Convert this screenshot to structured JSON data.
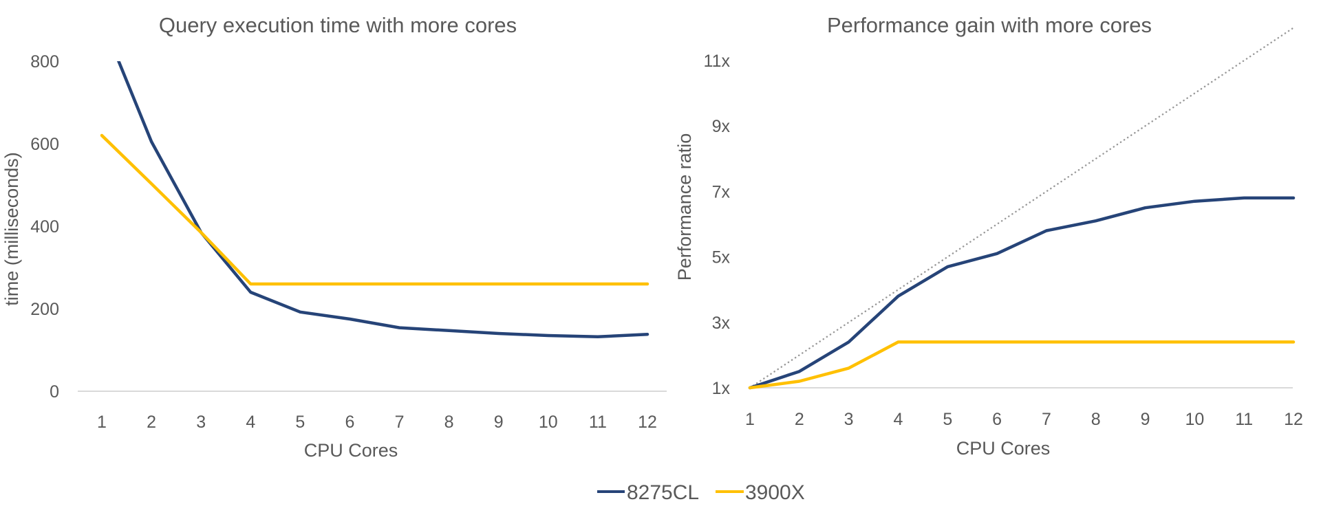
{
  "legend": {
    "position": "bottom-center",
    "items": [
      {
        "name": "8275CL",
        "color": "#264478"
      },
      {
        "name": "3900X",
        "color": "#FFC000"
      }
    ]
  },
  "chart_data": [
    {
      "type": "line",
      "title": "Query execution time with more cores",
      "xlabel": "CPU Cores",
      "ylabel": "time (milliseconds)",
      "x": [
        1,
        2,
        3,
        4,
        5,
        6,
        7,
        8,
        9,
        10,
        11,
        12
      ],
      "x_tick_labels": [
        "1",
        "2",
        "3",
        "4",
        "5",
        "6",
        "7",
        "8",
        "9",
        "10",
        "11",
        "12"
      ],
      "ylim": [
        0,
        800
      ],
      "y_ticks": [
        0,
        200,
        400,
        600,
        800
      ],
      "y_tick_labels": [
        "0",
        "200",
        "400",
        "600",
        "800"
      ],
      "grid": false,
      "series": [
        {
          "name": "8275CL",
          "color": "#264478",
          "values": [
            900,
            605,
            385,
            240,
            192,
            175,
            154,
            147,
            140,
            135,
            132,
            138
          ]
        },
        {
          "name": "3900X",
          "color": "#FFC000",
          "values": [
            620,
            503,
            385,
            260,
            260,
            260,
            260,
            260,
            260,
            260,
            260,
            260
          ]
        }
      ]
    },
    {
      "type": "line",
      "title": "Performance gain with more cores",
      "xlabel": "CPU Cores",
      "ylabel": "Performance ratio",
      "x": [
        1,
        2,
        3,
        4,
        5,
        6,
        7,
        8,
        9,
        10,
        11,
        12
      ],
      "x_tick_labels": [
        "1",
        "2",
        "3",
        "4",
        "5",
        "6",
        "7",
        "8",
        "9",
        "10",
        "11",
        "12"
      ],
      "ylim": [
        1,
        12
      ],
      "y_ticks": [
        1,
        3,
        5,
        7,
        9,
        11
      ],
      "y_tick_labels": [
        "1x",
        "3x",
        "5x",
        "7x",
        "9x",
        "11x"
      ],
      "grid": false,
      "series": [
        {
          "name": "8275CL",
          "color": "#264478",
          "values": [
            1.0,
            1.5,
            2.4,
            3.8,
            4.7,
            5.1,
            5.8,
            6.1,
            6.5,
            6.7,
            6.8,
            6.8
          ]
        },
        {
          "name": "3900X",
          "color": "#FFC000",
          "values": [
            1.0,
            1.2,
            1.6,
            2.4,
            2.4,
            2.4,
            2.4,
            2.4,
            2.4,
            2.4,
            2.4,
            2.4
          ]
        },
        {
          "name": "linear scaling",
          "color": "#999999",
          "style": "dotted",
          "in_legend": false,
          "values": [
            1,
            2,
            3,
            4,
            5,
            6,
            7,
            8,
            9,
            10,
            11,
            12
          ]
        }
      ]
    }
  ]
}
